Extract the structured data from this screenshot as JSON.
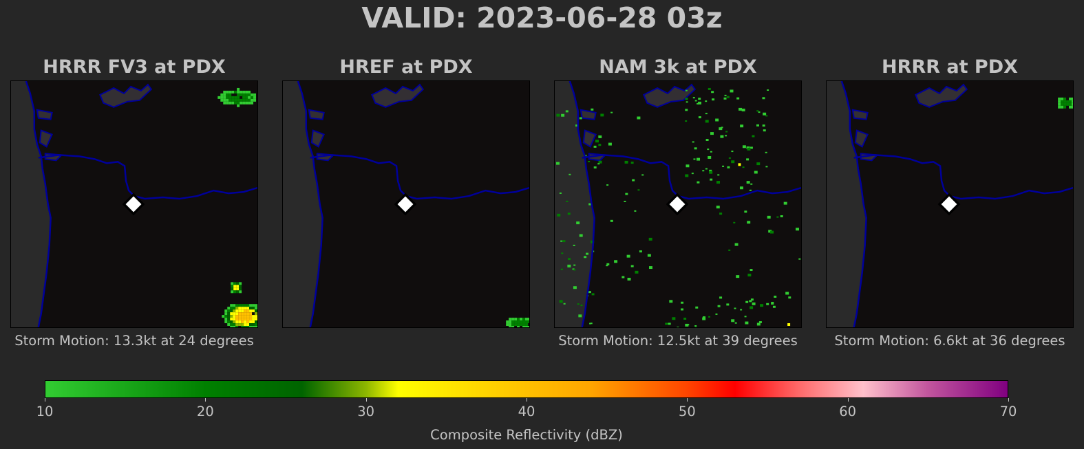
{
  "chart_data": {
    "type": "heatmap",
    "title": "VALID: 2023-06-28 03z",
    "panels": [
      {
        "title": "HRRR FV3 at PDX",
        "footer": "Storm Motion: 13.3kt at 24 degrees",
        "echo_pattern": "fv3"
      },
      {
        "title": "HREF at PDX",
        "footer": "",
        "echo_pattern": "href"
      },
      {
        "title": "NAM 3k at PDX",
        "footer": "Storm Motion: 12.5kt at 39 degrees",
        "echo_pattern": "nam"
      },
      {
        "title": "HRRR at PDX",
        "footer": "Storm Motion: 6.6kt at 36 degrees",
        "echo_pattern": "hrrr"
      }
    ],
    "marker_label": "PDX",
    "colorbar": {
      "label": "Composite Reflectivity (dBZ)",
      "range": [
        10,
        70
      ],
      "ticks": [
        10,
        20,
        30,
        40,
        50,
        60,
        70
      ],
      "stops": [
        {
          "value": 10,
          "color": "#32cd32"
        },
        {
          "value": 20,
          "color": "#008000"
        },
        {
          "value": 26,
          "color": "#006400"
        },
        {
          "value": 30,
          "color": "#8db600"
        },
        {
          "value": 32,
          "color": "#ffff00"
        },
        {
          "value": 40,
          "color": "#ffc000"
        },
        {
          "value": 44,
          "color": "#ffa500"
        },
        {
          "value": 50,
          "color": "#ff4500"
        },
        {
          "value": 53,
          "color": "#ff0000"
        },
        {
          "value": 57,
          "color": "#ff6a6a"
        },
        {
          "value": 61,
          "color": "#ffc0cb"
        },
        {
          "value": 65,
          "color": "#c2569e"
        },
        {
          "value": 70,
          "color": "#800080"
        }
      ]
    }
  },
  "colors": {
    "background": "#262626",
    "map_background": "#100d0d",
    "ocean": "#2a2a2a",
    "coastline": "#00009a",
    "marker_fill": "#ffffff",
    "marker_outline": "#000000"
  }
}
